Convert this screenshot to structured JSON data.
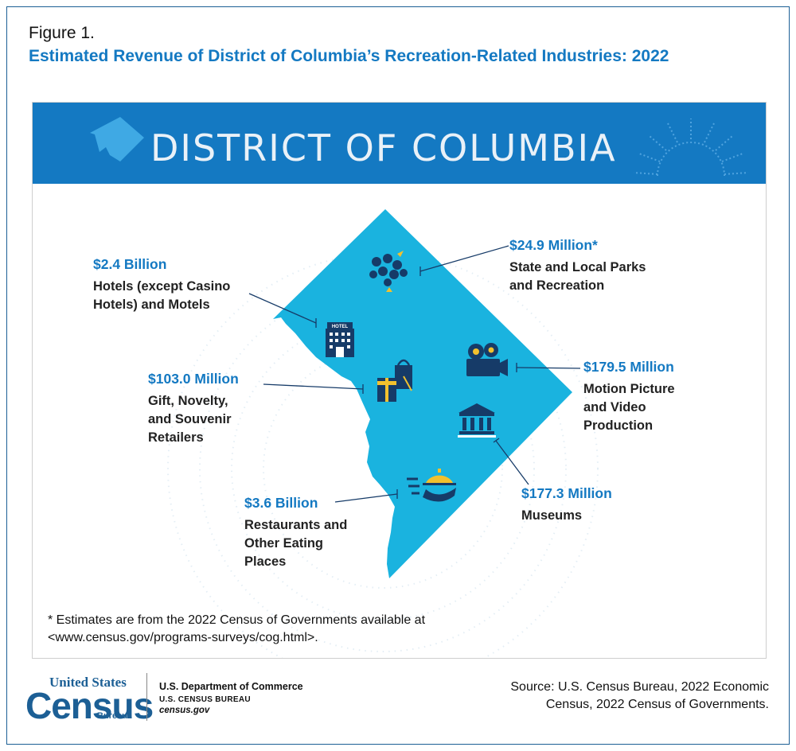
{
  "figure_label": "Figure 1.",
  "figure_title": "Estimated Revenue of District of Columbia’s Recreation-Related Industries: 2022",
  "banner_title": "DISTRICT OF COLUMBIA",
  "colors": {
    "accent_blue": "#1479c2",
    "map_fill": "#1ab3df",
    "icon_navy": "#163b68",
    "icon_gold": "#f2c12e",
    "frame": "#1c5f95"
  },
  "items": [
    {
      "id": "hotels",
      "value": "$2.4 Billion",
      "label": "Hotels (except Casino\nHotels) and Motels",
      "icon": "hotel-icon"
    },
    {
      "id": "parks",
      "value": "$24.9 Million*",
      "label": "State and Local Parks\nand Recreation",
      "icon": "flowers-icon"
    },
    {
      "id": "gift",
      "value": "$103.0 Million",
      "label": "Gift, Novelty,\nand Souvenir\nRetailers",
      "icon": "shopping-bags-icon"
    },
    {
      "id": "motion",
      "value": "$179.5 Million",
      "label": "Motion Picture\nand Video\nProduction",
      "icon": "video-camera-icon"
    },
    {
      "id": "museums",
      "value": "$177.3 Million",
      "label": "Museums",
      "icon": "museum-icon"
    },
    {
      "id": "restaurants",
      "value": "$3.6 Billion",
      "label": "Restaurants and\nOther Eating\nPlaces",
      "icon": "serving-tray-icon"
    }
  ],
  "hotel_sign": "HOTEL",
  "footnote": "* Estimates are from the 2022 Census of Governments available at\n<www.census.gov/programs-surveys/cog.html>.",
  "logo": {
    "top": "United States",
    "main": "Census",
    "bottom": "Bureau"
  },
  "dept": {
    "line1": "U.S. Department of Commerce",
    "line2": "U.S. CENSUS BUREAU",
    "line3": "census.gov"
  },
  "source": "Source: U.S. Census Bureau, 2022 Economic\nCensus, 2022 Census of Governments."
}
